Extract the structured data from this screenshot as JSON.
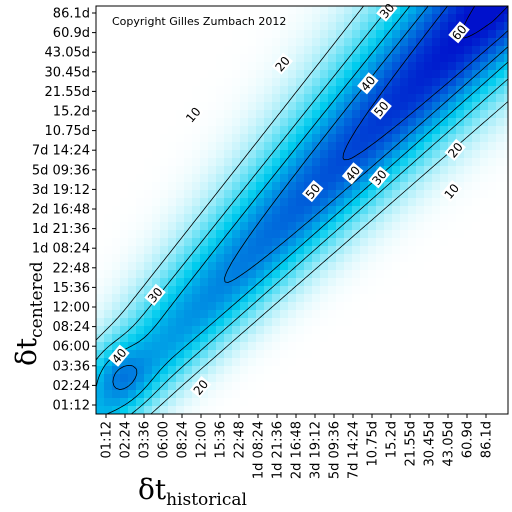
{
  "chart_data": {
    "type": "heatmap",
    "title": "",
    "annotation": "Copyright Gilles Zumbach 2012",
    "xlabel": {
      "symbol": "δt",
      "subscript": "historical"
    },
    "ylabel": {
      "symbol": "δt",
      "subscript": "centered"
    },
    "ticks": [
      "01:12",
      "02:24",
      "03:36",
      "06:00",
      "08:24",
      "12:00",
      "15:36",
      "22:48",
      "1d 08:24",
      "1d 21:36",
      "2d 16:48",
      "3d 19:12",
      "5d 09:36",
      "7d 14:24",
      "10.75d",
      "15.2d",
      "21.55d",
      "30.45d",
      "43.05d",
      "60.9d",
      "86.1d"
    ],
    "contour_levels": [
      10,
      20,
      30,
      40,
      50,
      60
    ],
    "contour_labels": [
      {
        "text": "10",
        "x": 4.6,
        "y": 14.8
      },
      {
        "text": "20",
        "x": 9.3,
        "y": 17.4
      },
      {
        "text": "30",
        "x": 14.8,
        "y": 20.1
      },
      {
        "text": "40",
        "x": 13.8,
        "y": 16.4
      },
      {
        "text": "50",
        "x": 14.5,
        "y": 15.1
      },
      {
        "text": "60",
        "x": 18.6,
        "y": 19.0
      },
      {
        "text": "30",
        "x": 2.6,
        "y": 5.6
      },
      {
        "text": "40",
        "x": 0.7,
        "y": 2.5
      },
      {
        "text": "50",
        "x": 10.9,
        "y": 10.9
      },
      {
        "text": "40",
        "x": 13.0,
        "y": 11.8
      },
      {
        "text": "30",
        "x": 14.4,
        "y": 11.6
      },
      {
        "text": "20",
        "x": 18.4,
        "y": 13.0
      },
      {
        "text": "10",
        "x": 18.2,
        "y": 10.9
      },
      {
        "text": "20",
        "x": 5.0,
        "y": 0.9
      }
    ],
    "colors": {
      "low": "#ffffff",
      "mid": "#00ccee",
      "high": "#0011cc"
    },
    "diagonal_peak": 60
  }
}
